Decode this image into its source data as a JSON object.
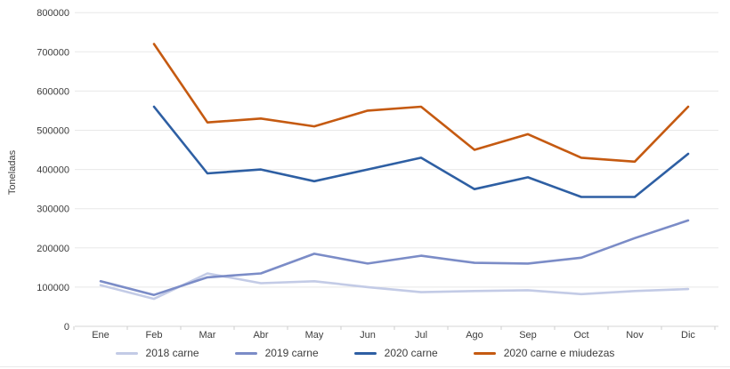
{
  "chart_data": {
    "type": "line",
    "title": "",
    "xlabel": "",
    "ylabel": "Toneladas",
    "ylim": [
      0,
      800000
    ],
    "y_tick_interval": 100000,
    "y_tick_labels": [
      "0",
      "100000",
      "200000",
      "300000",
      "400000",
      "500000",
      "600000",
      "700000",
      "800000"
    ],
    "grid": true,
    "legend_position": "bottom",
    "categories": [
      "Ene",
      "Feb",
      "Mar",
      "Abr",
      "May",
      "Jun",
      "Jul",
      "Ago",
      "Sep",
      "Oct",
      "Nov",
      "Dic"
    ],
    "series": [
      {
        "name": "2018 carne",
        "color": "#c3cbe6",
        "values": [
          105000,
          70000,
          135000,
          110000,
          115000,
          100000,
          87000,
          90000,
          92000,
          82000,
          90000,
          95000
        ]
      },
      {
        "name": "2019 carne",
        "color": "#7b8cc7",
        "values": [
          115000,
          80000,
          125000,
          135000,
          185000,
          160000,
          180000,
          162000,
          160000,
          175000,
          225000,
          270000
        ]
      },
      {
        "name": "2020 carne",
        "color": "#2e5fa3",
        "values": [
          null,
          560000,
          390000,
          400000,
          370000,
          400000,
          430000,
          350000,
          380000,
          330000,
          330000,
          440000
        ]
      },
      {
        "name": "2020 carne e miudezas",
        "color": "#c55a11",
        "values": [
          null,
          720000,
          520000,
          530000,
          510000,
          550000,
          560000,
          450000,
          490000,
          430000,
          420000,
          560000
        ]
      }
    ],
    "style": {
      "grid_color": "#e8e8e8",
      "axis_color": "#d6d6d6",
      "tick_color": "#cccccc",
      "text_color": "#3d3d3d",
      "background": "#ffffff"
    }
  }
}
